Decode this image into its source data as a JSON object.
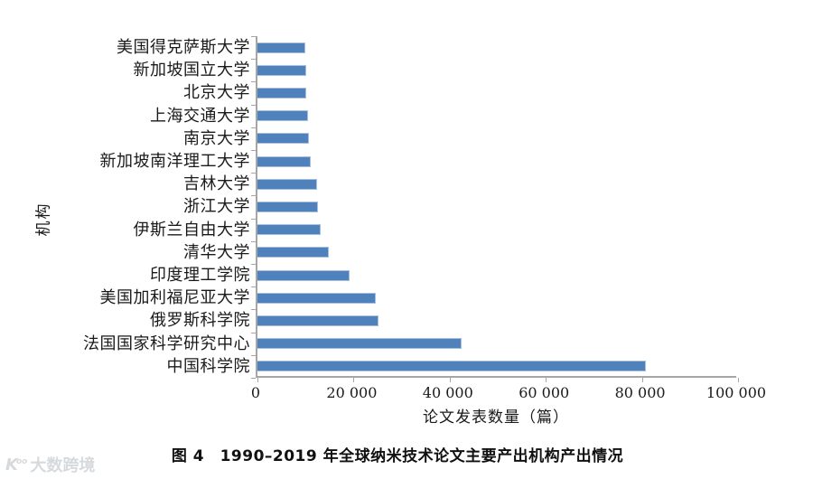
{
  "chart_data": {
    "type": "bar",
    "orientation": "horizontal",
    "title": "",
    "xlabel": "论文发表数量（篇）",
    "ylabel": "机构",
    "xlim": [
      0,
      100000
    ],
    "grid": false,
    "legend": null,
    "bar_color": "#4f81bd",
    "bar_border_color": "#a8c0dc",
    "axis_color": "#a6a6a6",
    "categories": [
      "美国得克萨斯大学",
      "新加坡国立大学",
      "北京大学",
      "上海交通大学",
      "南京大学",
      "新加坡南洋理工大学",
      "吉林大学",
      "浙江大学",
      "伊斯兰自由大学",
      "清华大学",
      "印度理工学院",
      "美国加利福尼亚大学",
      "俄罗斯科学院",
      "法国国家科学研究中心",
      "中国科学院"
    ],
    "values": [
      9900,
      10100,
      10100,
      10500,
      10700,
      11100,
      12400,
      12600,
      13200,
      14800,
      19200,
      24700,
      25200,
      42400,
      80800
    ],
    "x_ticks": [
      "0",
      "20 000",
      "40 000",
      "60 000",
      "80 000",
      "100 000"
    ],
    "x_tick_values": [
      0,
      20000,
      40000,
      60000,
      80000,
      100000
    ]
  },
  "caption": "图 4　1990–2019 年全球纳米技术论文主要产出机构产出情况",
  "watermark": {
    "logo": "Koo",
    "text": "大数跨境"
  }
}
